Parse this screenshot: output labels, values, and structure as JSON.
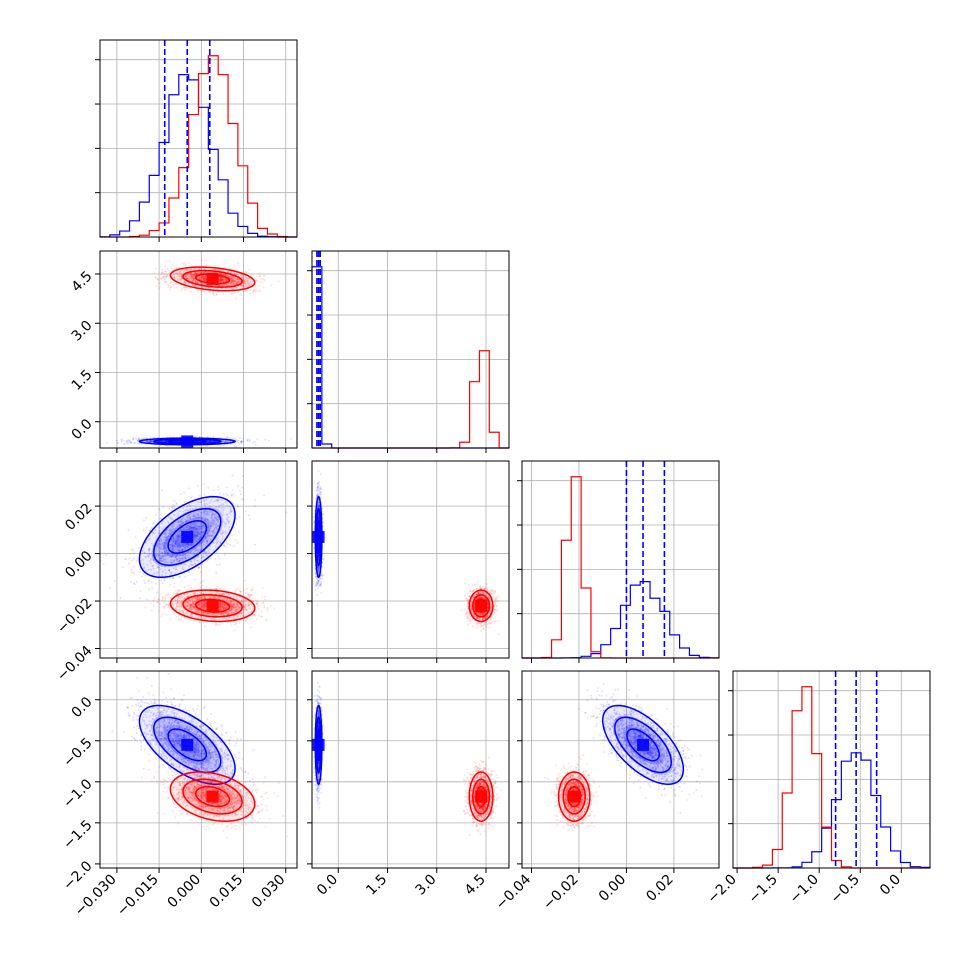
{
  "chart_data": {
    "type": "corner",
    "grid": true,
    "colors": {
      "blue": "#0000ff",
      "red": "#ff0000",
      "grid": "#b0b0b0"
    },
    "params": [
      {
        "range": [
          -0.036,
          0.034
        ],
        "ticks": [
          "−0.030",
          "−0.015",
          "0.000",
          "0.015",
          "0.030"
        ],
        "tick_values": [
          -0.03,
          -0.015,
          0.0,
          0.015,
          0.03
        ]
      },
      {
        "range": [
          -0.8,
          5.2
        ],
        "ticks": [
          "0.0",
          "1.5",
          "3.0",
          "4.5"
        ],
        "tick_values": [
          0.0,
          1.5,
          3.0,
          4.5
        ]
      },
      {
        "range": [
          -0.044,
          0.039
        ],
        "ticks": [
          "−0.04",
          "−0.02",
          "0.00",
          "0.02"
        ],
        "tick_values": [
          -0.04,
          -0.02,
          0.0,
          0.02
        ]
      },
      {
        "range": [
          -2.05,
          0.35
        ],
        "ticks": [
          "−2.0",
          "−1.5",
          "−1.0",
          "−0.5",
          "0.0"
        ],
        "tick_values": [
          -2.0,
          -1.5,
          -1.0,
          -0.5,
          0.0
        ]
      }
    ],
    "series": [
      {
        "color": "blue",
        "means": [
          -0.005,
          -0.6,
          0.007,
          -0.55
        ],
        "sigmas": [
          0.0085,
          0.05,
          0.0085,
          0.24
        ],
        "quantiles": [
          [
            -0.013,
            -0.005,
            0.003
          ],
          [
            -0.65,
            -0.6,
            -0.55
          ],
          [
            0.0,
            0.007,
            0.016
          ],
          [
            -0.8,
            -0.55,
            -0.3
          ]
        ]
      },
      {
        "color": "red",
        "means": [
          0.004,
          4.35,
          -0.022,
          -1.18
        ],
        "sigmas": [
          0.0075,
          0.18,
          0.0033,
          0.15
        ]
      }
    ],
    "correlations": {
      "blue": {
        "0-2": 0.55,
        "0-3": -0.6,
        "2-3": -0.62
      },
      "red": {
        "0-1": -0.3,
        "0-2": -0.15,
        "0-3": -0.3
      }
    }
  }
}
